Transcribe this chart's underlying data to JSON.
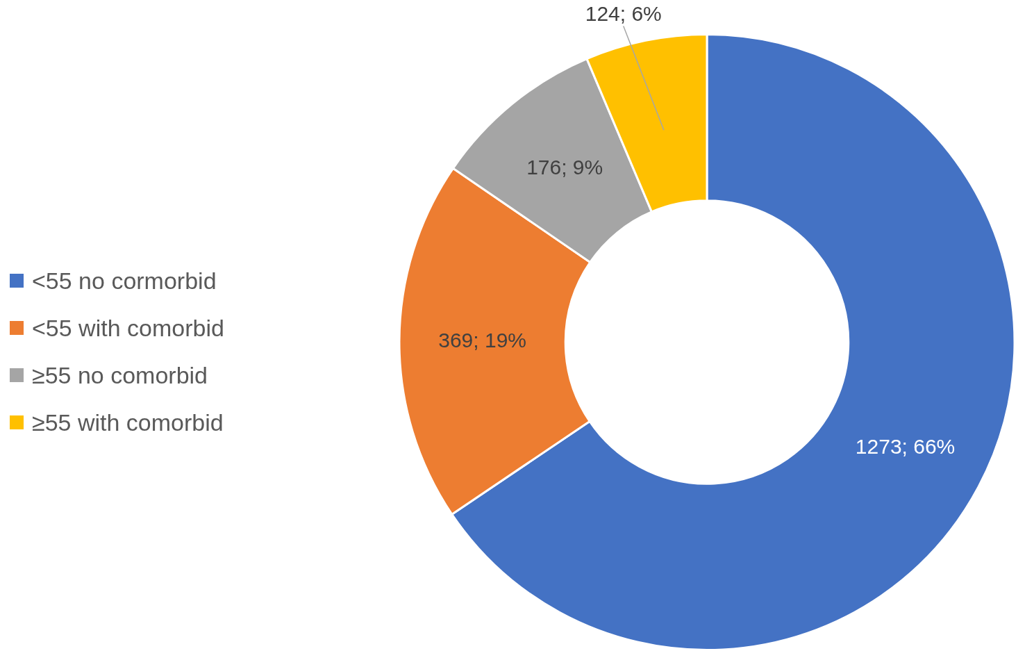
{
  "chart_data": {
    "type": "donut",
    "categories": [
      "<55 no cormorbid",
      "<55 with comorbid",
      "≥55 no comorbid",
      "≥55 with comorbid"
    ],
    "values": [
      1273,
      369,
      176,
      124
    ],
    "colors": [
      "#4472c4",
      "#ed7d31",
      "#a5a5a5",
      "#ffc000"
    ],
    "value_labels": [
      "1273; 66%",
      "369; 19%",
      "176; 9%",
      "124; 6%"
    ],
    "legend": "left"
  }
}
